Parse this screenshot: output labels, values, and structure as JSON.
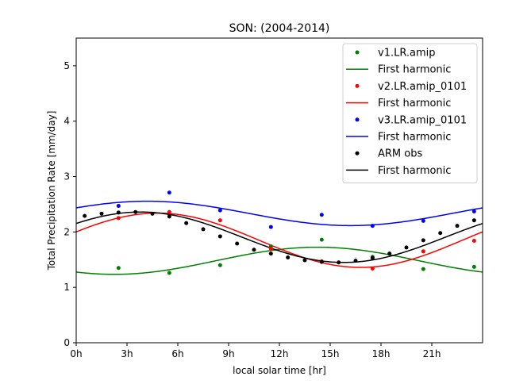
{
  "chart_data": {
    "type": "scatter",
    "title": "SON: (2004-2014)",
    "xlabel": "local solar time [hr]",
    "ylabel": "Total Precipitation Rate [mm/day]",
    "xlim": [
      0,
      24
    ],
    "ylim": [
      0,
      5.5
    ],
    "xticks": [
      {
        "value": 0,
        "label": "0h"
      },
      {
        "value": 3,
        "label": "3h"
      },
      {
        "value": 6,
        "label": "6h"
      },
      {
        "value": 9,
        "label": "9h"
      },
      {
        "value": 12,
        "label": "12h"
      },
      {
        "value": 15,
        "label": "15h"
      },
      {
        "value": 18,
        "label": "18h"
      },
      {
        "value": 21,
        "label": "21h"
      }
    ],
    "yticks": [
      {
        "value": 0,
        "label": "0"
      },
      {
        "value": 1,
        "label": "1"
      },
      {
        "value": 2,
        "label": "2"
      },
      {
        "value": 3,
        "label": "3"
      },
      {
        "value": 4,
        "label": "4"
      },
      {
        "value": 5,
        "label": "5"
      }
    ],
    "grid": false,
    "legend_position": "top-right",
    "series": [
      {
        "name": "v1.LR.amip",
        "color": "#008000",
        "x": [
          2.5,
          5.5,
          8.5,
          11.5,
          14.5,
          17.5,
          20.5,
          23.5
        ],
        "y": [
          1.35,
          1.26,
          1.4,
          1.74,
          1.86,
          1.55,
          1.33,
          1.37
        ],
        "fit_label": "First harmonic",
        "fit": {
          "mean": 1.48,
          "amplitude": 0.245,
          "peak_hour": 14.25
        }
      },
      {
        "name": "v2.LR.amip_0101",
        "color": "#ff0000",
        "x": [
          2.5,
          5.5,
          8.5,
          11.5,
          14.5,
          17.5,
          20.5,
          23.5
        ],
        "y": [
          2.25,
          2.36,
          2.21,
          1.7,
          1.47,
          1.34,
          1.65,
          1.84
        ],
        "fit_label": "First harmonic",
        "fit": {
          "mean": 1.85,
          "amplitude": 0.49,
          "peak_hour": 4.8
        }
      },
      {
        "name": "v3.LR.amip_0101",
        "color": "#0000ff",
        "x": [
          2.5,
          5.5,
          8.5,
          11.5,
          14.5,
          17.5,
          20.5,
          23.5
        ],
        "y": [
          2.47,
          2.71,
          2.39,
          2.09,
          2.31,
          2.11,
          2.2,
          2.37
        ],
        "fit_label": "First harmonic",
        "fit": {
          "mean": 2.335,
          "amplitude": 0.22,
          "peak_hour": 4.2
        }
      },
      {
        "name": "ARM obs",
        "color": "#000000",
        "x": [
          0.5,
          1.5,
          2.5,
          3.5,
          4.5,
          5.5,
          6.5,
          7.5,
          8.5,
          9.5,
          10.5,
          11.5,
          12.5,
          13.5,
          14.5,
          15.5,
          16.5,
          17.5,
          18.5,
          19.5,
          20.5,
          21.5,
          22.5,
          23.5
        ],
        "y": [
          2.29,
          2.33,
          2.35,
          2.36,
          2.33,
          2.28,
          2.16,
          2.05,
          1.92,
          1.79,
          1.68,
          1.61,
          1.54,
          1.49,
          1.46,
          1.45,
          1.48,
          1.53,
          1.61,
          1.72,
          1.85,
          1.98,
          2.11,
          2.21
        ],
        "fit_label": "First harmonic",
        "fit": {
          "mean": 1.905,
          "amplitude": 0.455,
          "peak_hour": 3.8
        }
      }
    ]
  }
}
